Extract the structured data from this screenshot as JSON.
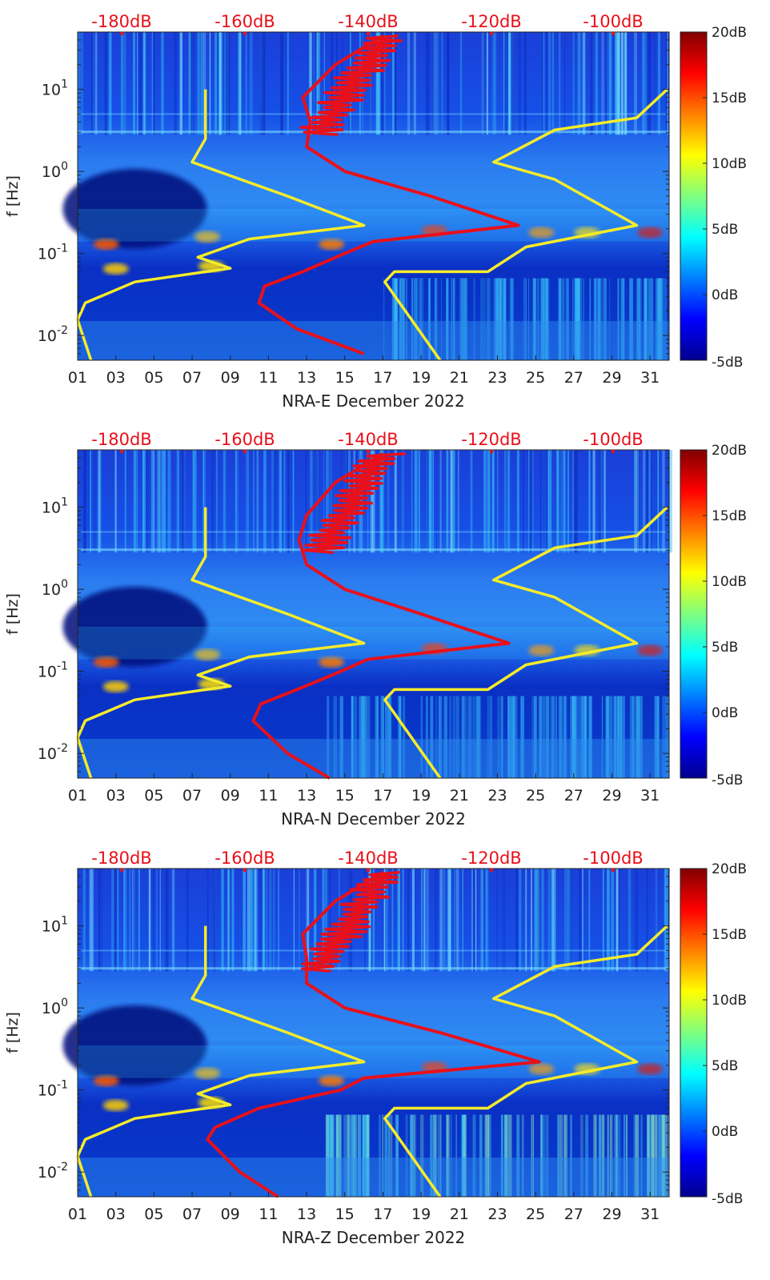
{
  "chart_data": [
    {
      "type": "heatmap",
      "title": "NRA-E December 2022",
      "xlabel": "NRA-E December 2022",
      "ylabel": "f [Hz]",
      "y_scale": "log",
      "ylim": [
        0.005,
        50
      ],
      "x_tick_labels": [
        "01",
        "03",
        "05",
        "07",
        "09",
        "11",
        "13",
        "15",
        "17",
        "19",
        "21",
        "23",
        "25",
        "27",
        "29",
        "31"
      ],
      "y_tick_labels": [
        "10^-2",
        "10^-1",
        "10^0",
        "10^1"
      ],
      "top_axis_labels": [
        "-180dB",
        "-160dB",
        "-140dB",
        "-120dB",
        "-100dB"
      ],
      "colorbar": {
        "min": -5,
        "max": 20,
        "ticks": [
          "-5dB",
          "0dB",
          "5dB",
          "10dB",
          "15dB",
          "20dB"
        ]
      },
      "noise_model_lines": [
        {
          "name": "yellow-low",
          "color": "#f5ec2a",
          "points": [
            [
              1.7,
              0.005
            ],
            [
              1.0,
              0.0155
            ],
            [
              1.4,
              0.025
            ],
            [
              4.0,
              0.045
            ],
            [
              9.0,
              0.066
            ],
            [
              7.3,
              0.09
            ],
            [
              10.0,
              0.15
            ],
            [
              16.0,
              0.22
            ],
            [
              12.0,
              0.5
            ],
            [
              7.0,
              1.3
            ],
            [
              7.7,
              2.5
            ],
            [
              7.7,
              10
            ]
          ]
        },
        {
          "name": "yellow-high",
          "color": "#f5ec2a",
          "points": [
            [
              20.0,
              0.005
            ],
            [
              17.1,
              0.045
            ],
            [
              17.6,
              0.06
            ],
            [
              22.5,
              0.06
            ],
            [
              24.5,
              0.12
            ],
            [
              30.3,
              0.22
            ],
            [
              26.0,
              0.8
            ],
            [
              22.8,
              1.3
            ],
            [
              26.0,
              3.2
            ],
            [
              30.3,
              4.5
            ],
            [
              31.9,
              10
            ]
          ]
        },
        {
          "name": "red-psd",
          "color": "#e8101a",
          "points": [
            [
              16.0,
              0.006
            ],
            [
              12.5,
              0.012
            ],
            [
              10.5,
              0.025
            ],
            [
              10.8,
              0.04
            ],
            [
              12.8,
              0.06
            ],
            [
              15.0,
              0.1
            ],
            [
              16.5,
              0.14
            ],
            [
              24.1,
              0.22
            ],
            [
              19.5,
              0.5
            ],
            [
              15.0,
              1.0
            ],
            [
              13.0,
              2.0
            ],
            [
              13.2,
              4.0
            ],
            [
              12.8,
              8.0
            ],
            [
              14.5,
              20
            ],
            [
              17.0,
              45
            ]
          ]
        }
      ]
    },
    {
      "type": "heatmap",
      "title": "NRA-N December 2022",
      "xlabel": "NRA-N December 2022",
      "ylabel": "f [Hz]",
      "y_scale": "log",
      "ylim": [
        0.005,
        50
      ],
      "x_tick_labels": [
        "01",
        "03",
        "05",
        "07",
        "09",
        "11",
        "13",
        "15",
        "17",
        "19",
        "21",
        "23",
        "25",
        "27",
        "29",
        "31"
      ],
      "y_tick_labels": [
        "10^-2",
        "10^-1",
        "10^0",
        "10^1"
      ],
      "top_axis_labels": [
        "-180dB",
        "-160dB",
        "-140dB",
        "-120dB",
        "-100dB"
      ],
      "colorbar": {
        "min": -5,
        "max": 20,
        "ticks": [
          "-5dB",
          "0dB",
          "5dB",
          "10dB",
          "15dB",
          "20dB"
        ]
      },
      "noise_model_lines": [
        {
          "name": "yellow-low",
          "color": "#f5ec2a",
          "points": [
            [
              1.7,
              0.005
            ],
            [
              1.0,
              0.0155
            ],
            [
              1.4,
              0.025
            ],
            [
              4.0,
              0.045
            ],
            [
              9.0,
              0.066
            ],
            [
              7.3,
              0.09
            ],
            [
              10.0,
              0.15
            ],
            [
              16.0,
              0.22
            ],
            [
              12.0,
              0.5
            ],
            [
              7.0,
              1.3
            ],
            [
              7.7,
              2.5
            ],
            [
              7.7,
              10
            ]
          ]
        },
        {
          "name": "yellow-high",
          "color": "#f5ec2a",
          "points": [
            [
              20.0,
              0.005
            ],
            [
              17.1,
              0.045
            ],
            [
              17.6,
              0.06
            ],
            [
              22.5,
              0.06
            ],
            [
              24.5,
              0.12
            ],
            [
              30.3,
              0.22
            ],
            [
              26.0,
              0.8
            ],
            [
              22.8,
              1.3
            ],
            [
              26.0,
              3.2
            ],
            [
              30.3,
              4.5
            ],
            [
              31.9,
              10
            ]
          ]
        },
        {
          "name": "red-psd",
          "color": "#e8101a",
          "points": [
            [
              14.2,
              0.005
            ],
            [
              12.0,
              0.01
            ],
            [
              10.2,
              0.025
            ],
            [
              10.6,
              0.04
            ],
            [
              12.5,
              0.06
            ],
            [
              14.8,
              0.1
            ],
            [
              16.2,
              0.14
            ],
            [
              23.6,
              0.22
            ],
            [
              19.0,
              0.5
            ],
            [
              15.0,
              1.0
            ],
            [
              13.0,
              2.0
            ],
            [
              12.6,
              4.0
            ],
            [
              13.0,
              8.0
            ],
            [
              14.5,
              20
            ],
            [
              17.0,
              45
            ]
          ]
        }
      ]
    },
    {
      "type": "heatmap",
      "title": "NRA-Z December 2022",
      "xlabel": "NRA-Z December 2022",
      "ylabel": "f [Hz]",
      "y_scale": "log",
      "ylim": [
        0.005,
        50
      ],
      "x_tick_labels": [
        "01",
        "03",
        "05",
        "07",
        "09",
        "11",
        "13",
        "15",
        "17",
        "19",
        "21",
        "23",
        "25",
        "27",
        "29",
        "31"
      ],
      "y_tick_labels": [
        "10^-2",
        "10^-1",
        "10^0",
        "10^1"
      ],
      "top_axis_labels": [
        "-180dB",
        "-160dB",
        "-140dB",
        "-120dB",
        "-100dB"
      ],
      "colorbar": {
        "min": -5,
        "max": 20,
        "ticks": [
          "-5dB",
          "0dB",
          "5dB",
          "10dB",
          "15dB",
          "20dB"
        ]
      },
      "noise_model_lines": [
        {
          "name": "yellow-low",
          "color": "#f5ec2a",
          "points": [
            [
              1.7,
              0.005
            ],
            [
              1.0,
              0.0155
            ],
            [
              1.4,
              0.025
            ],
            [
              4.0,
              0.045
            ],
            [
              9.0,
              0.066
            ],
            [
              7.3,
              0.09
            ],
            [
              10.0,
              0.15
            ],
            [
              16.0,
              0.22
            ],
            [
              12.0,
              0.5
            ],
            [
              7.0,
              1.3
            ],
            [
              7.7,
              2.5
            ],
            [
              7.7,
              10
            ]
          ]
        },
        {
          "name": "yellow-high",
          "color": "#f5ec2a",
          "points": [
            [
              20.0,
              0.005
            ],
            [
              17.1,
              0.045
            ],
            [
              17.6,
              0.06
            ],
            [
              22.5,
              0.06
            ],
            [
              24.5,
              0.12
            ],
            [
              30.3,
              0.22
            ],
            [
              26.0,
              0.8
            ],
            [
              22.8,
              1.3
            ],
            [
              26.0,
              3.2
            ],
            [
              30.3,
              4.5
            ],
            [
              31.9,
              10
            ]
          ]
        },
        {
          "name": "red-psd",
          "color": "#e8101a",
          "points": [
            [
              11.5,
              0.005
            ],
            [
              9.5,
              0.01
            ],
            [
              7.8,
              0.025
            ],
            [
              8.2,
              0.035
            ],
            [
              10.5,
              0.06
            ],
            [
              14.8,
              0.1
            ],
            [
              16.0,
              0.14
            ],
            [
              25.2,
              0.22
            ],
            [
              20.0,
              0.5
            ],
            [
              15.0,
              1.0
            ],
            [
              13.0,
              2.0
            ],
            [
              13.0,
              4.0
            ],
            [
              12.8,
              8.0
            ],
            [
              14.5,
              20
            ],
            [
              17.0,
              45
            ]
          ]
        }
      ]
    }
  ]
}
